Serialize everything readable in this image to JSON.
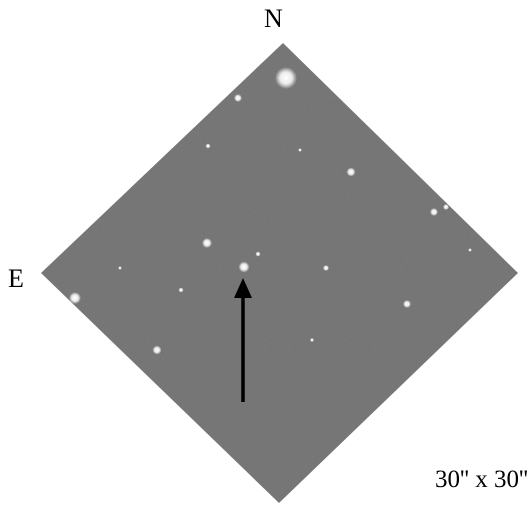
{
  "compass": {
    "north": "N",
    "east": "E"
  },
  "scale_label": "30'' x 30''",
  "colors": {
    "sky_background": "#7b7b7b",
    "stars": "#ffffff",
    "arrow": "#000000",
    "text": "#000000"
  },
  "icons": {
    "target_pointer": "arrow-up-icon"
  }
}
